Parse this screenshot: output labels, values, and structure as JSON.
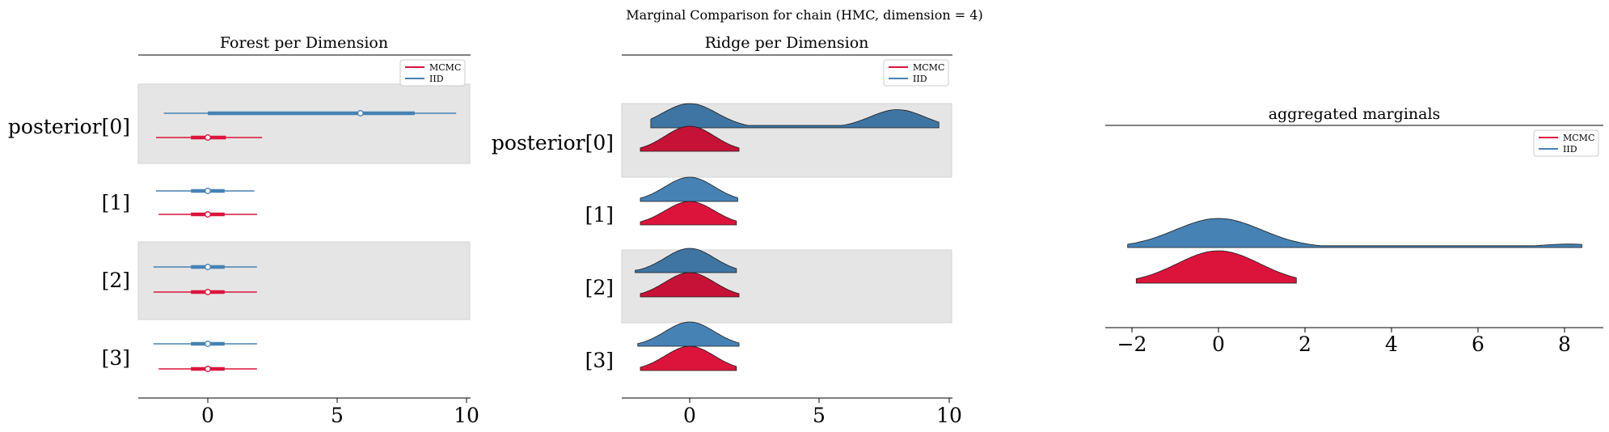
{
  "suptitle": "Marginal Comparison for chain (HMC, dimension = 4)",
  "colors": {
    "mcmc": "#DC143C",
    "iid": "#4682B4",
    "band": "#e5e5e5"
  },
  "chart_data": [
    {
      "type": "forest",
      "title": "Forest per Dimension",
      "legend": {
        "position": "top-right",
        "entries": [
          "MCMC",
          "IID"
        ]
      },
      "rows": [
        "posterior[0]",
        "[1]",
        "[2]",
        "[3]"
      ],
      "xticks": [
        "0",
        "5",
        "10"
      ],
      "xlim": [
        -2.6,
        10
      ],
      "series": [
        {
          "name": "IID",
          "median": [
            5.9,
            0.0,
            0.0,
            0.0
          ],
          "hdi_inner": [
            [
              0.0,
              8.0
            ],
            [
              -0.65,
              0.65
            ],
            [
              -0.65,
              0.65
            ],
            [
              -0.65,
              0.65
            ]
          ],
          "hdi_outer": [
            [
              -1.7,
              9.6
            ],
            [
              -2.0,
              1.8
            ],
            [
              -2.1,
              1.9
            ],
            [
              -2.1,
              1.9
            ]
          ]
        },
        {
          "name": "MCMC",
          "median": [
            0.0,
            0.0,
            0.0,
            0.0
          ],
          "hdi_inner": [
            [
              -0.65,
              0.7
            ],
            [
              -0.65,
              0.65
            ],
            [
              -0.65,
              0.65
            ],
            [
              -0.65,
              0.65
            ]
          ],
          "hdi_outer": [
            [
              -2.0,
              2.1
            ],
            [
              -1.9,
              1.9
            ],
            [
              -2.1,
              1.9
            ],
            [
              -1.9,
              1.9
            ]
          ]
        }
      ]
    },
    {
      "type": "ridge",
      "title": "Ridge per Dimension",
      "legend": {
        "position": "top-right",
        "entries": [
          "MCMC",
          "IID"
        ]
      },
      "rows": [
        "posterior[0]",
        "[1]",
        "[2]",
        "[3]"
      ],
      "xticks": [
        "0",
        "5",
        "10"
      ],
      "xlim": [
        -2.6,
        10
      ],
      "series": [
        {
          "name": "IID",
          "range": [
            [
              -1.5,
              9.6
            ],
            [
              -1.9,
              1.85
            ],
            [
              -2.1,
              1.8
            ],
            [
              -2.0,
              1.9
            ]
          ],
          "modes": [
            [
              0.0,
              8.0
            ],
            [
              0.0
            ],
            [
              0.0
            ],
            [
              0.0
            ]
          ]
        },
        {
          "name": "MCMC",
          "range": [
            [
              -1.9,
              1.9
            ],
            [
              -1.9,
              1.8
            ],
            [
              -1.9,
              1.9
            ],
            [
              -1.9,
              1.8
            ]
          ],
          "modes": [
            [
              0.0
            ],
            [
              0.0
            ],
            [
              0.0
            ],
            [
              0.0
            ]
          ]
        }
      ]
    },
    {
      "type": "area",
      "title": "aggregated marginals",
      "legend": {
        "position": "top-right",
        "entries": [
          "MCMC",
          "IID"
        ]
      },
      "xticks": [
        "−2",
        "0",
        "2",
        "4",
        "6",
        "8"
      ],
      "xlim": [
        -2.6,
        8.9
      ],
      "series": [
        {
          "name": "IID",
          "range": [
            -2.1,
            8.4
          ]
        },
        {
          "name": "MCMC",
          "range": [
            -1.9,
            1.8
          ]
        }
      ]
    }
  ]
}
